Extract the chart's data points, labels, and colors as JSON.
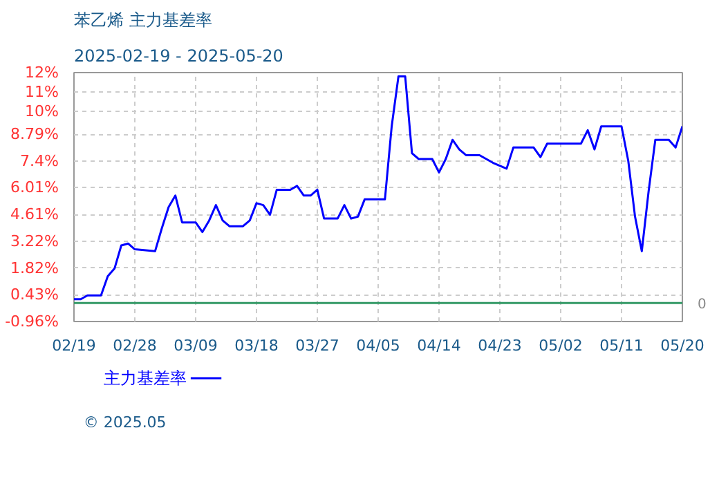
{
  "chart_data": {
    "type": "line",
    "title": "苯乙烯  主力基差率",
    "subtitle": "2025-02-19 - 2025-05-20",
    "x": [
      "2025-02-19",
      "2025-02-20",
      "2025-02-21",
      "2025-02-23",
      "2025-02-24",
      "2025-02-25",
      "2025-02-26",
      "2025-02-27",
      "2025-02-28",
      "2025-03-03",
      "2025-03-04",
      "2025-03-05",
      "2025-03-06",
      "2025-03-07",
      "2025-03-09",
      "2025-03-10",
      "2025-03-11",
      "2025-03-12",
      "2025-03-13",
      "2025-03-14",
      "2025-03-16",
      "2025-03-17",
      "2025-03-18",
      "2025-03-19",
      "2025-03-20",
      "2025-03-21",
      "2025-03-23",
      "2025-03-24",
      "2025-03-25",
      "2025-03-26",
      "2025-03-27",
      "2025-03-28",
      "2025-03-30",
      "2025-03-31",
      "2025-04-01",
      "2025-04-02",
      "2025-04-03",
      "2025-04-06",
      "2025-04-07",
      "2025-04-08",
      "2025-04-09",
      "2025-04-10",
      "2025-04-11",
      "2025-04-13",
      "2025-04-14",
      "2025-04-15",
      "2025-04-16",
      "2025-04-17",
      "2025-04-18",
      "2025-04-20",
      "2025-04-21",
      "2025-04-22",
      "2025-04-24",
      "2025-04-25",
      "2025-04-28",
      "2025-04-29",
      "2025-04-30",
      "2025-05-05",
      "2025-05-06",
      "2025-05-07",
      "2025-05-08",
      "2025-05-11",
      "2025-05-12",
      "2025-05-13",
      "2025-05-14",
      "2025-05-15",
      "2025-05-16",
      "2025-05-18",
      "2025-05-19",
      "2025-05-20"
    ],
    "series": [
      {
        "name": "主力基差率",
        "color": "#0000ff",
        "values": [
          0.2,
          0.2,
          0.4,
          0.4,
          1.4,
          1.8,
          3.0,
          3.1,
          2.8,
          2.7,
          3.9,
          5.0,
          5.6,
          4.2,
          4.2,
          3.7,
          4.3,
          5.1,
          4.3,
          4.0,
          4.0,
          4.3,
          5.2,
          5.1,
          4.6,
          5.9,
          5.9,
          6.1,
          5.6,
          5.6,
          5.9,
          4.4,
          4.4,
          5.1,
          4.4,
          4.5,
          5.4,
          5.4,
          9.2,
          11.8,
          11.8,
          7.8,
          7.5,
          7.5,
          6.8,
          7.5,
          8.5,
          8.0,
          7.7,
          7.7,
          7.5,
          7.3,
          7.0,
          8.1,
          8.1,
          7.6,
          8.3,
          8.3,
          9.0,
          8.0,
          9.2,
          9.2,
          7.4,
          4.5,
          2.7,
          5.8,
          8.5,
          8.5,
          8.1,
          9.2
        ]
      }
    ],
    "xlim": [
      "2025-02-19",
      "2025-05-20"
    ],
    "xticks": [
      {
        "value": "2025-02-19",
        "label": "02/19"
      },
      {
        "value": "2025-02-28",
        "label": "02/28"
      },
      {
        "value": "2025-03-09",
        "label": "03/09"
      },
      {
        "value": "2025-03-18",
        "label": "03/18"
      },
      {
        "value": "2025-03-27",
        "label": "03/27"
      },
      {
        "value": "2025-04-05",
        "label": "04/05"
      },
      {
        "value": "2025-04-14",
        "label": "04/14"
      },
      {
        "value": "2025-04-23",
        "label": "04/23"
      },
      {
        "value": "2025-05-02",
        "label": "05/02"
      },
      {
        "value": "2025-05-11",
        "label": "05/11"
      },
      {
        "value": "2025-05-20",
        "label": "05/20"
      }
    ],
    "ylim": [
      -0.96,
      12
    ],
    "yticks": [
      {
        "value": -0.96,
        "label": "-0.96%"
      },
      {
        "value": 0.43,
        "label": "0.43%"
      },
      {
        "value": 1.82,
        "label": "1.82%"
      },
      {
        "value": 3.22,
        "label": "3.22%"
      },
      {
        "value": 4.61,
        "label": "4.61%"
      },
      {
        "value": 6.01,
        "label": "6.01%"
      },
      {
        "value": 7.4,
        "label": "7.4%"
      },
      {
        "value": 8.79,
        "label": "8.79%"
      },
      {
        "value": 10,
        "label": "10%"
      },
      {
        "value": 11,
        "label": "11%"
      },
      {
        "value": 12,
        "label": "12%"
      }
    ],
    "ref_lines": [
      {
        "axis": "y",
        "value": 0,
        "label": "0",
        "color": "#339966"
      }
    ],
    "grid": true,
    "legend": "bottom",
    "marker": "none",
    "line_style": "solid",
    "annotations": [
      "© 2025.05"
    ]
  }
}
